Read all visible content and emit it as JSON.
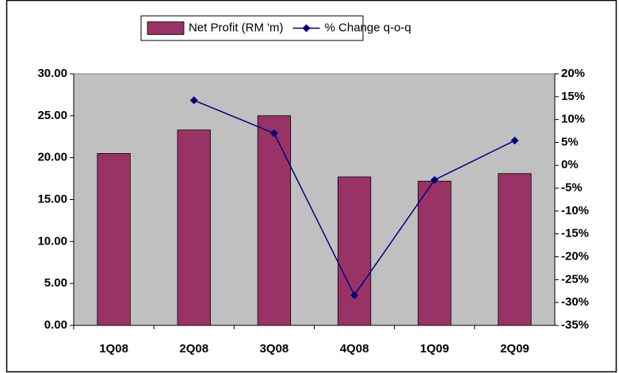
{
  "chart_data": {
    "type": "bar",
    "categories": [
      "1Q08",
      "2Q08",
      "3Q08",
      "4Q08",
      "1Q09",
      "2Q09"
    ],
    "series": [
      {
        "name": "Net Profit (RM 'm)",
        "type": "bar",
        "color": "#993366",
        "values": [
          20.5,
          23.3,
          25.0,
          17.7,
          17.2,
          18.1
        ]
      },
      {
        "name": "% Change q-o-q",
        "type": "line",
        "color": "#000080",
        "axis": "y2",
        "values": [
          null,
          14.2,
          7.0,
          -28.4,
          -3.2,
          5.4
        ]
      }
    ],
    "ylim": [
      0,
      30
    ],
    "yticks": [
      {
        "value": 0,
        "label": "0.00"
      },
      {
        "value": 5,
        "label": "5.00"
      },
      {
        "value": 10,
        "label": "10.00"
      },
      {
        "value": 15,
        "label": "15.00"
      },
      {
        "value": 20,
        "label": "20.00"
      },
      {
        "value": 25,
        "label": "25.00"
      },
      {
        "value": 30,
        "label": "30.00"
      }
    ],
    "y2lim": [
      -35,
      20
    ],
    "y2ticks": [
      {
        "value": -35,
        "label": "-35%"
      },
      {
        "value": -30,
        "label": "-30%"
      },
      {
        "value": -25,
        "label": "-25%"
      },
      {
        "value": -20,
        "label": "-20%"
      },
      {
        "value": -15,
        "label": "-15%"
      },
      {
        "value": -10,
        "label": "-10%"
      },
      {
        "value": -5,
        "label": "-5%"
      },
      {
        "value": 0,
        "label": "0%"
      },
      {
        "value": 5,
        "label": "5%"
      },
      {
        "value": 10,
        "label": "10%"
      },
      {
        "value": 15,
        "label": "15%"
      },
      {
        "value": 20,
        "label": "20%"
      }
    ],
    "grid": false,
    "plot_background": "#c0c0c0",
    "legend": "top"
  }
}
